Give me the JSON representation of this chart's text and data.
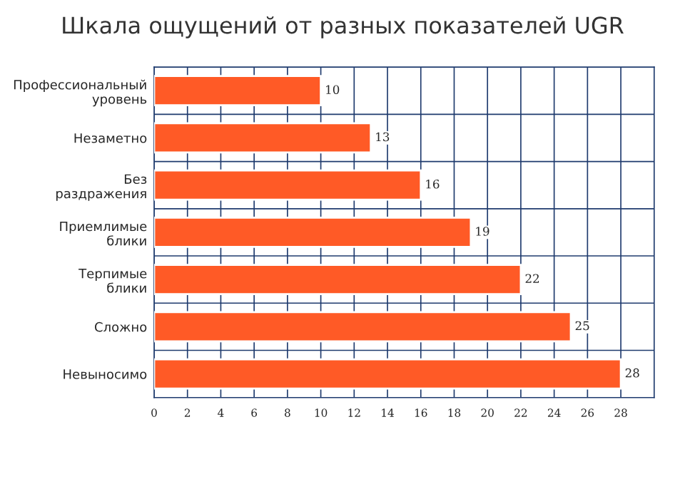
{
  "chart_data": {
    "type": "bar",
    "orientation": "horizontal",
    "title": "Шкала ощущений от разных показателей UGR",
    "categories": [
      "Профессиональный\nуровень",
      "Незаметно",
      "Без\nраздражения",
      "Приемлимые\nблики",
      "Терпимые\nблики",
      "Сложно",
      "Невыносимо"
    ],
    "values": [
      10,
      13,
      16,
      19,
      22,
      25,
      28
    ],
    "color": "#ff5a26",
    "xlim": [
      0,
      30
    ],
    "xticks": [
      0,
      2,
      4,
      6,
      8,
      10,
      12,
      14,
      16,
      18,
      20,
      22,
      24,
      26,
      28
    ],
    "grid": true,
    "data_labels": true
  }
}
